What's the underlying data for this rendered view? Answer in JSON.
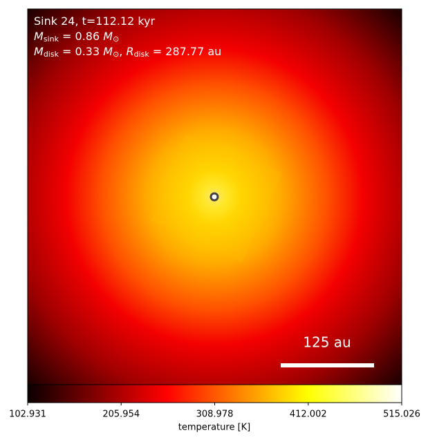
{
  "chart_data": {
    "type": "image",
    "annotations": [
      [
        {
          "text": "Sink 24, t=112.12 kyr",
          "style": "normal"
        }
      ],
      [
        {
          "text": "M",
          "style": "italic"
        },
        {
          "text": "sink",
          "style": "sub"
        },
        {
          "text": " = 0.86 ",
          "style": "normal"
        },
        {
          "text": "M",
          "style": "italic"
        },
        {
          "text": "⊙",
          "style": "sub"
        }
      ],
      [
        {
          "text": "M",
          "style": "italic"
        },
        {
          "text": "disk",
          "style": "sub"
        },
        {
          "text": " = 0.33 ",
          "style": "normal"
        },
        {
          "text": "M",
          "style": "italic"
        },
        {
          "text": "⊙",
          "style": "sub"
        },
        {
          "text": ", ",
          "style": "normal"
        },
        {
          "text": "R",
          "style": "italic"
        },
        {
          "text": "disk",
          "style": "sub"
        },
        {
          "text": " = 287.77 au",
          "style": "normal"
        }
      ]
    ],
    "scale_bar_label": "125 au",
    "colormap": "hot",
    "colorbar": {
      "label": "temperature [K]",
      "clim": [
        102.931,
        515.026
      ],
      "ticks": [
        102.931,
        205.954,
        308.978,
        412.002,
        515.026
      ]
    }
  }
}
